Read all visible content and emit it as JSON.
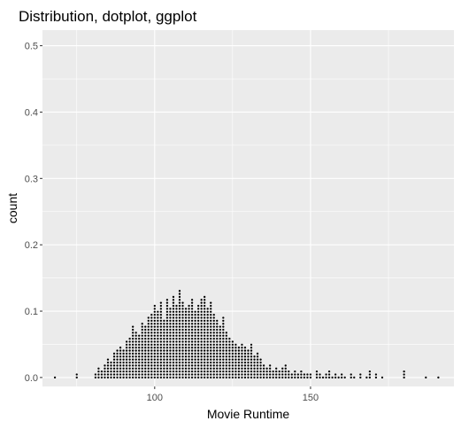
{
  "chart_data": {
    "type": "scatter",
    "title": "Distribution, dotplot, ggplot",
    "xlabel": "Movie Runtime",
    "ylabel": "count",
    "xlim": [
      64,
      196
    ],
    "ylim": [
      -0.0135,
      0.5235
    ],
    "x_ticks": [
      100,
      150
    ],
    "x_tick_labels": [
      "100",
      "150"
    ],
    "y_ticks": [
      0.0,
      0.1,
      0.2,
      0.3,
      0.4,
      0.5
    ],
    "y_tick_labels": [
      "0.0",
      "0.1",
      "0.2",
      "0.3",
      "0.4",
      "0.5"
    ],
    "grid": true,
    "panel_color": "#ebebeb",
    "grid_color": "#ffffff",
    "point_color": "#000000",
    "stack_step": 0.0045,
    "series": [
      {
        "stacks": [
          [
            68,
            1
          ],
          [
            75,
            2
          ],
          [
            81,
            2
          ],
          [
            82,
            4
          ],
          [
            83,
            3
          ],
          [
            84,
            5
          ],
          [
            85,
            7
          ],
          [
            86,
            6
          ],
          [
            87,
            9
          ],
          [
            88,
            10
          ],
          [
            89,
            11
          ],
          [
            90,
            10
          ],
          [
            91,
            13
          ],
          [
            92,
            14
          ],
          [
            93,
            18
          ],
          [
            94,
            16
          ],
          [
            95,
            15
          ],
          [
            96,
            19
          ],
          [
            97,
            18
          ],
          [
            98,
            21
          ],
          [
            99,
            22
          ],
          [
            100,
            25
          ],
          [
            101,
            23
          ],
          [
            102,
            26
          ],
          [
            103,
            20
          ],
          [
            104,
            27
          ],
          [
            105,
            24
          ],
          [
            106,
            28
          ],
          [
            107,
            25
          ],
          [
            108,
            30
          ],
          [
            109,
            26
          ],
          [
            110,
            24
          ],
          [
            111,
            25
          ],
          [
            112,
            27
          ],
          [
            113,
            23
          ],
          [
            114,
            25
          ],
          [
            115,
            27
          ],
          [
            116,
            28
          ],
          [
            117,
            24
          ],
          [
            118,
            26
          ],
          [
            119,
            22
          ],
          [
            120,
            20
          ],
          [
            121,
            18
          ],
          [
            122,
            21
          ],
          [
            123,
            16
          ],
          [
            124,
            14
          ],
          [
            125,
            13
          ],
          [
            126,
            12
          ],
          [
            127,
            11
          ],
          [
            128,
            12
          ],
          [
            129,
            11
          ],
          [
            130,
            10
          ],
          [
            131,
            12
          ],
          [
            132,
            8
          ],
          [
            133,
            9
          ],
          [
            134,
            7
          ],
          [
            135,
            5
          ],
          [
            136,
            4
          ],
          [
            137,
            5
          ],
          [
            138,
            3
          ],
          [
            139,
            4
          ],
          [
            140,
            3
          ],
          [
            141,
            4
          ],
          [
            142,
            5
          ],
          [
            143,
            3
          ],
          [
            144,
            2
          ],
          [
            145,
            3
          ],
          [
            146,
            2
          ],
          [
            147,
            3
          ],
          [
            148,
            2
          ],
          [
            149,
            2
          ],
          [
            150,
            2
          ],
          [
            152,
            3
          ],
          [
            153,
            2
          ],
          [
            154,
            1
          ],
          [
            155,
            2
          ],
          [
            156,
            3
          ],
          [
            157,
            1
          ],
          [
            158,
            2
          ],
          [
            159,
            1
          ],
          [
            160,
            2
          ],
          [
            161,
            1
          ],
          [
            163,
            2
          ],
          [
            164,
            1
          ],
          [
            166,
            2
          ],
          [
            168,
            1
          ],
          [
            169,
            3
          ],
          [
            171,
            2
          ],
          [
            173,
            1
          ],
          [
            180,
            3
          ],
          [
            187,
            1
          ],
          [
            191,
            1
          ]
        ]
      }
    ]
  }
}
